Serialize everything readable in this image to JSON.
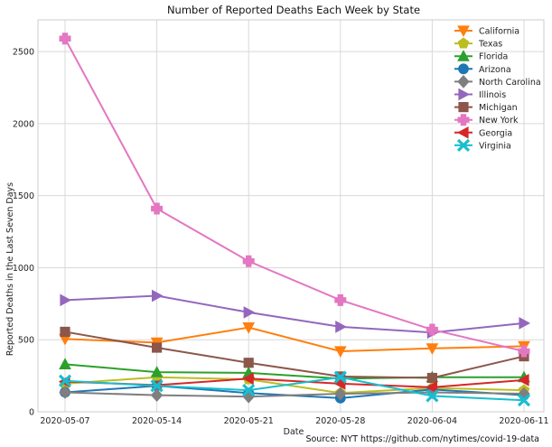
{
  "chart_data": {
    "type": "line",
    "title": "Number of Reported Deaths Each Week by State",
    "xlabel": "Date",
    "ylabel": "Reported Deaths in the Last Seven Days",
    "categories": [
      "2020-05-07",
      "2020-05-14",
      "2020-05-21",
      "2020-05-28",
      "2020-06-04",
      "2020-06-11"
    ],
    "ylim": [
      0,
      2720
    ],
    "yticks": [
      0,
      500,
      1000,
      1500,
      2000,
      2500
    ],
    "grid": true,
    "legend_position": "top-right",
    "source_note": "Source: NYT https://github.com/nytimes/covid-19-data",
    "series": [
      {
        "name": "California",
        "color": "#ff7f0e",
        "marker": "triangle-down",
        "values": [
          505,
          480,
          585,
          420,
          440,
          455
        ]
      },
      {
        "name": "Texas",
        "color": "#bcbd22",
        "marker": "pentagon",
        "values": [
          195,
          240,
          225,
          130,
          165,
          150
        ]
      },
      {
        "name": "Florida",
        "color": "#2ca02c",
        "marker": "triangle-up",
        "values": [
          330,
          275,
          270,
          230,
          240,
          240
        ]
      },
      {
        "name": "Arizona",
        "color": "#1f77b4",
        "marker": "circle",
        "values": [
          135,
          180,
          130,
          95,
          155,
          115
        ]
      },
      {
        "name": "North Carolina",
        "color": "#7f7f7f",
        "marker": "diamond",
        "values": [
          135,
          115,
          105,
          125,
          135,
          125
        ]
      },
      {
        "name": "Illinois",
        "color": "#9467bd",
        "marker": "triangle-right",
        "values": [
          775,
          805,
          690,
          590,
          550,
          615
        ]
      },
      {
        "name": "Michigan",
        "color": "#8c564b",
        "marker": "square",
        "values": [
          555,
          445,
          340,
          245,
          235,
          385
        ]
      },
      {
        "name": "New York",
        "color": "#e377c2",
        "marker": "plus",
        "values": [
          2590,
          1410,
          1045,
          775,
          570,
          420
        ]
      },
      {
        "name": "Georgia",
        "color": "#d62728",
        "marker": "triangle-left",
        "values": [
          210,
          185,
          230,
          195,
          170,
          220
        ]
      },
      {
        "name": "Virginia",
        "color": "#17becf",
        "marker": "x",
        "values": [
          215,
          180,
          150,
          240,
          110,
          80
        ]
      }
    ]
  }
}
